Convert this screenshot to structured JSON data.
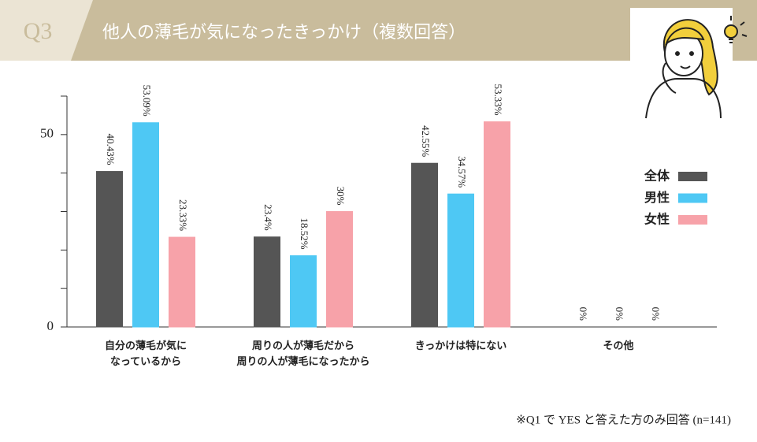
{
  "chart_data": {
    "type": "bar",
    "badge": "Q3",
    "title": "他人の薄毛が気になったきっかけ（複数回答）",
    "footnote": "※Q1 で YES と答えた方のみ回答 (n=141)",
    "categories": [
      "自分の薄毛が気に\nなっているから",
      "周りの人が薄毛だから\n周りの人が薄毛になったから",
      "きっかけは特にない",
      "その他"
    ],
    "series": [
      {
        "name": "全体",
        "color": "#555555",
        "values": [
          40.43,
          23.4,
          42.55,
          0
        ],
        "value_labels": [
          "40.43%",
          "23.4%",
          "42.55%",
          "0%"
        ]
      },
      {
        "name": "男性",
        "color": "#4ec8f4",
        "values": [
          53.09,
          18.52,
          34.57,
          0
        ],
        "value_labels": [
          "53.09%",
          "18.52%",
          "34.57%",
          "0%"
        ]
      },
      {
        "name": "女性",
        "color": "#f7a2a9",
        "values": [
          23.33,
          30,
          53.33,
          0
        ],
        "value_labels": [
          "23.33%",
          "30%",
          "53.33%",
          "0%"
        ]
      }
    ],
    "ylim": [
      0,
      60
    ],
    "yticks": [
      0,
      50
    ],
    "minor_yticks": [
      10,
      20,
      30,
      40,
      60
    ],
    "legend": "right"
  }
}
